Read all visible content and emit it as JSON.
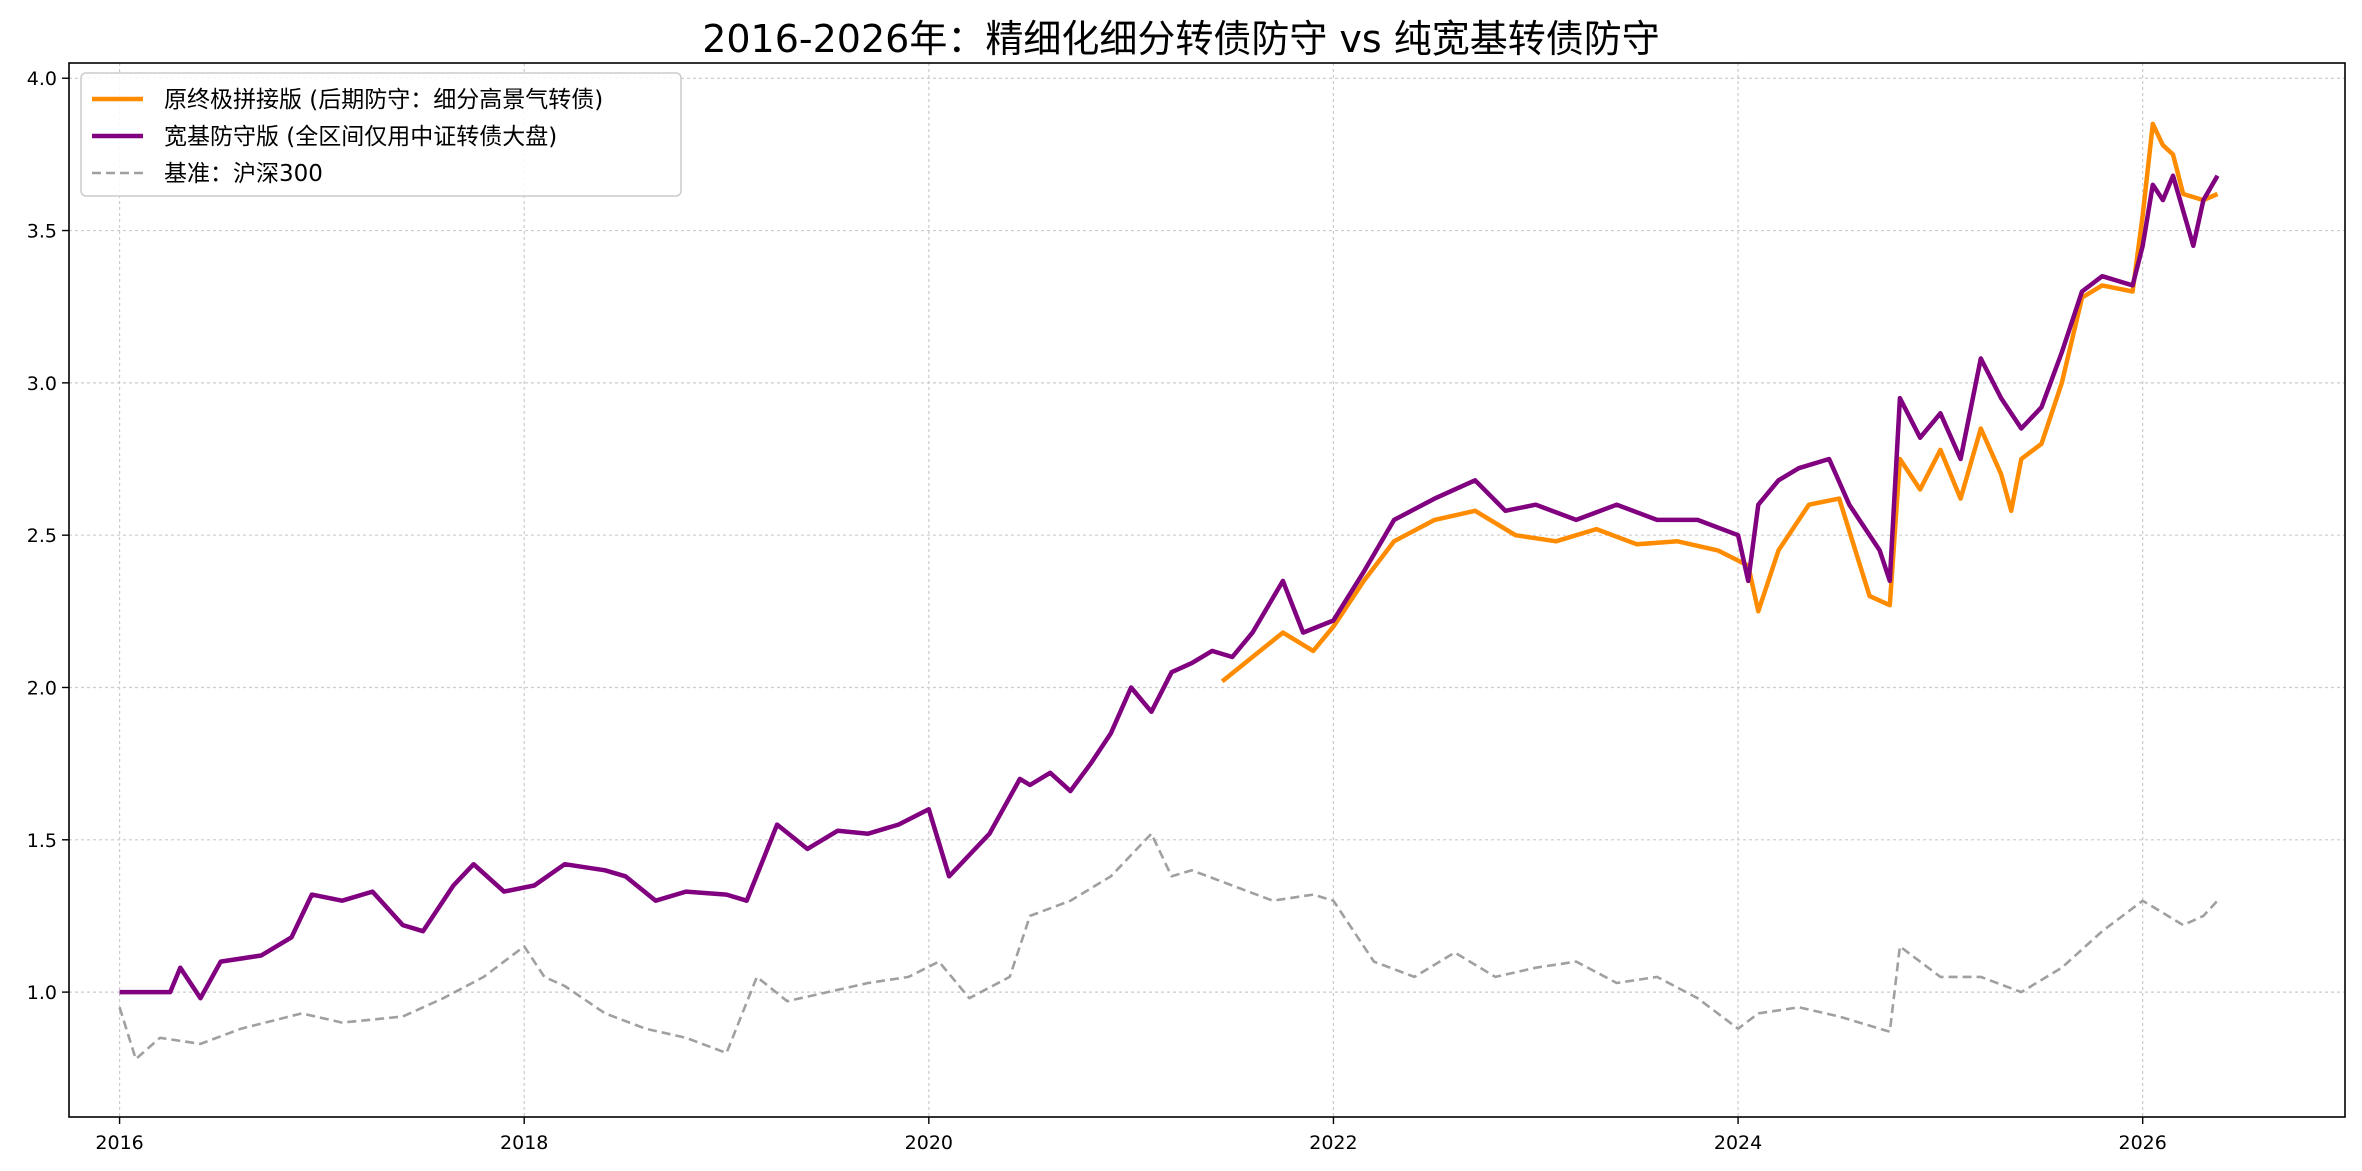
{
  "chart_data": {
    "type": "line",
    "title": "2016-2026年：精细化细分转债防守 vs 纯宽基转债防守",
    "xlabel": "",
    "ylabel": "",
    "xlim": [
      2015.75,
      2027.0
    ],
    "ylim": [
      0.59,
      4.05
    ],
    "x_ticks": [
      2016,
      2018,
      2020,
      2022,
      2024,
      2026
    ],
    "x_tick_labels": [
      "2016",
      "2018",
      "2020",
      "2022",
      "2024",
      "2026"
    ],
    "y_ticks": [
      1.0,
      1.5,
      2.0,
      2.5,
      3.0,
      3.5,
      4.0
    ],
    "y_tick_labels": [
      "1.0",
      "1.5",
      "2.0",
      "2.5",
      "3.0",
      "3.5",
      "4.0"
    ],
    "grid": true,
    "legend_position": "top-left",
    "series": [
      {
        "name": "原终极拼接版 (后期防守：细分高景气转债)",
        "color": "#ff8c00",
        "style": "solid",
        "x": [
          2021.45,
          2021.6,
          2021.75,
          2021.9,
          2022.0,
          2022.15,
          2022.3,
          2022.5,
          2022.7,
          2022.9,
          2023.1,
          2023.3,
          2023.5,
          2023.7,
          2023.9,
          2024.05,
          2024.1,
          2024.2,
          2024.35,
          2024.5,
          2024.65,
          2024.75,
          2024.8,
          2024.9,
          2025.0,
          2025.1,
          2025.2,
          2025.3,
          2025.35,
          2025.4,
          2025.5,
          2025.6,
          2025.7,
          2025.8,
          2025.95,
          2026.0,
          2026.05,
          2026.1,
          2026.15,
          2026.2,
          2026.3,
          2026.37
        ],
        "y": [
          2.02,
          2.1,
          2.18,
          2.12,
          2.2,
          2.35,
          2.48,
          2.55,
          2.58,
          2.5,
          2.48,
          2.52,
          2.47,
          2.48,
          2.45,
          2.4,
          2.25,
          2.45,
          2.6,
          2.62,
          2.3,
          2.27,
          2.75,
          2.65,
          2.78,
          2.62,
          2.85,
          2.7,
          2.58,
          2.75,
          2.8,
          3.0,
          3.28,
          3.32,
          3.3,
          3.55,
          3.85,
          3.78,
          3.75,
          3.62,
          3.6,
          3.62
        ]
      },
      {
        "name": "宽基防守版 (全区间仅用中证转债大盘)",
        "color": "#800080",
        "style": "solid",
        "x": [
          2016.0,
          2016.25,
          2016.3,
          2016.4,
          2016.5,
          2016.7,
          2016.85,
          2016.95,
          2017.1,
          2017.25,
          2017.4,
          2017.5,
          2017.65,
          2017.75,
          2017.9,
          2018.05,
          2018.2,
          2018.4,
          2018.5,
          2018.65,
          2018.8,
          2019.0,
          2019.1,
          2019.25,
          2019.4,
          2019.55,
          2019.7,
          2019.85,
          2020.0,
          2020.1,
          2020.2,
          2020.3,
          2020.45,
          2020.5,
          2020.6,
          2020.7,
          2020.8,
          2020.9,
          2021.0,
          2021.1,
          2021.2,
          2021.3,
          2021.4,
          2021.5,
          2021.6,
          2021.75,
          2021.85,
          2022.0,
          2022.15,
          2022.3,
          2022.5,
          2022.7,
          2022.85,
          2023.0,
          2023.2,
          2023.4,
          2023.6,
          2023.8,
          2024.0,
          2024.05,
          2024.1,
          2024.2,
          2024.3,
          2024.45,
          2024.55,
          2024.7,
          2024.75,
          2024.8,
          2024.9,
          2025.0,
          2025.1,
          2025.2,
          2025.3,
          2025.4,
          2025.5,
          2025.6,
          2025.7,
          2025.8,
          2025.95,
          2026.0,
          2026.05,
          2026.1,
          2026.15,
          2026.25,
          2026.3,
          2026.37
        ],
        "y": [
          1.0,
          1.0,
          1.08,
          0.98,
          1.1,
          1.12,
          1.18,
          1.32,
          1.3,
          1.33,
          1.22,
          1.2,
          1.35,
          1.42,
          1.33,
          1.35,
          1.42,
          1.4,
          1.38,
          1.3,
          1.33,
          1.32,
          1.3,
          1.55,
          1.47,
          1.53,
          1.52,
          1.55,
          1.6,
          1.38,
          1.45,
          1.52,
          1.7,
          1.68,
          1.72,
          1.66,
          1.75,
          1.85,
          2.0,
          1.92,
          2.05,
          2.08,
          2.12,
          2.1,
          2.18,
          2.35,
          2.18,
          2.22,
          2.38,
          2.55,
          2.62,
          2.68,
          2.58,
          2.6,
          2.55,
          2.6,
          2.55,
          2.55,
          2.5,
          2.35,
          2.6,
          2.68,
          2.72,
          2.75,
          2.6,
          2.45,
          2.35,
          2.95,
          2.82,
          2.9,
          2.75,
          3.08,
          2.95,
          2.85,
          2.92,
          3.1,
          3.3,
          3.35,
          3.32,
          3.45,
          3.65,
          3.6,
          3.68,
          3.45,
          3.6,
          3.68
        ]
      },
      {
        "name": "基准：沪深300",
        "color": "#a0a0a0",
        "style": "dashed",
        "x": [
          2016.0,
          2016.08,
          2016.2,
          2016.4,
          2016.6,
          2016.9,
          2017.1,
          2017.4,
          2017.6,
          2017.8,
          2018.0,
          2018.1,
          2018.2,
          2018.4,
          2018.6,
          2018.8,
          2019.0,
          2019.15,
          2019.3,
          2019.5,
          2019.7,
          2019.9,
          2020.05,
          2020.2,
          2020.4,
          2020.5,
          2020.7,
          2020.9,
          2021.1,
          2021.2,
          2021.3,
          2021.5,
          2021.7,
          2021.9,
          2022.0,
          2022.2,
          2022.4,
          2022.6,
          2022.8,
          2023.0,
          2023.2,
          2023.4,
          2023.6,
          2023.8,
          2024.0,
          2024.1,
          2024.3,
          2024.5,
          2024.7,
          2024.75,
          2024.8,
          2025.0,
          2025.2,
          2025.4,
          2025.6,
          2025.8,
          2026.0,
          2026.2,
          2026.3,
          2026.37
        ],
        "y": [
          0.95,
          0.78,
          0.85,
          0.83,
          0.88,
          0.93,
          0.9,
          0.92,
          0.98,
          1.05,
          1.15,
          1.05,
          1.02,
          0.93,
          0.88,
          0.85,
          0.8,
          1.05,
          0.97,
          1.0,
          1.03,
          1.05,
          1.1,
          0.98,
          1.05,
          1.25,
          1.3,
          1.38,
          1.52,
          1.38,
          1.4,
          1.35,
          1.3,
          1.32,
          1.3,
          1.1,
          1.05,
          1.13,
          1.05,
          1.08,
          1.1,
          1.03,
          1.05,
          0.98,
          0.88,
          0.93,
          0.95,
          0.92,
          0.88,
          0.87,
          1.15,
          1.05,
          1.05,
          1.0,
          1.08,
          1.2,
          1.3,
          1.22,
          1.25,
          1.3
        ]
      }
    ]
  }
}
